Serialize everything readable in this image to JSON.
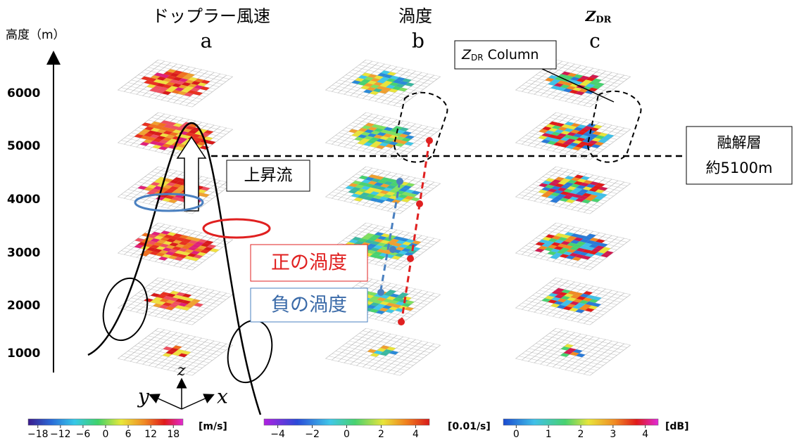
{
  "axis": {
    "title": "高度（m）",
    "ticks": [
      "6000",
      "5000",
      "4000",
      "3000",
      "2000",
      "1000"
    ]
  },
  "panels": [
    {
      "title": "ドップラー風速",
      "letter": "a",
      "colorbar": {
        "ticks": [
          "−18",
          "−12",
          "−6",
          "0",
          "6",
          "12",
          "18"
        ],
        "unit": "[m/s]"
      }
    },
    {
      "title": "渦度",
      "letter": "b",
      "colorbar": {
        "ticks": [
          "−4",
          "−2",
          "0",
          "2",
          "4"
        ],
        "unit": "[0.01/s]"
      }
    },
    {
      "title": "Z",
      "title_sub": "DR",
      "letter": "c",
      "colorbar": {
        "ticks": [
          "0",
          "1",
          "2",
          "3",
          "4"
        ],
        "unit": "[dB]"
      }
    }
  ],
  "annotations": {
    "updraft": "上昇流",
    "positive_vorticity": "正の渦度",
    "negative_vorticity": "負の渦度",
    "melting_layer": [
      "融解層",
      "約5100m"
    ],
    "zdr_column": {
      "main": "Z",
      "sub": "DR",
      "rest": " Column"
    }
  },
  "coordinates": {
    "x": "x",
    "y": "y",
    "z": "z"
  }
}
